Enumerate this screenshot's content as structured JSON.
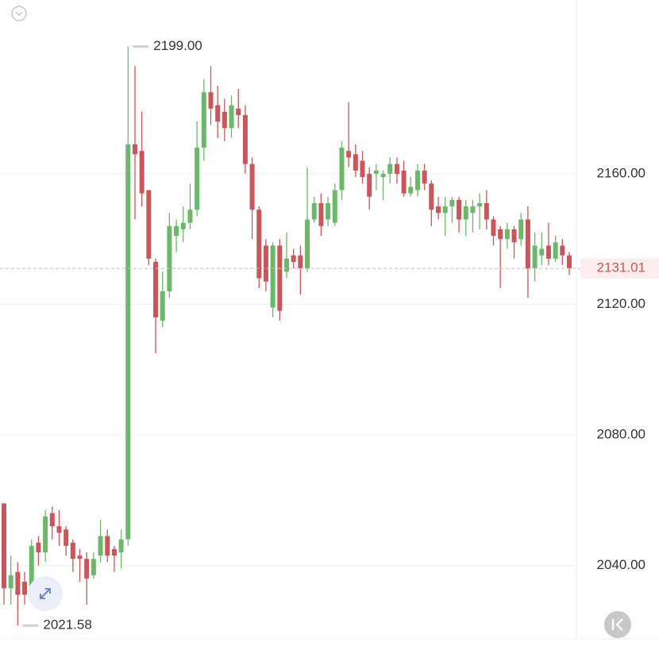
{
  "chart_data": {
    "type": "candlestick",
    "up_color": "#6cb86a",
    "down_color": "#c9565a",
    "open": [
      2059,
      2033,
      2038,
      2035,
      2032,
      2047,
      2044,
      2056,
      2052,
      2051,
      2047,
      2043,
      2042,
      2037,
      2043,
      2049,
      2045,
      2044,
      2048,
      2169,
      2167,
      2155,
      2133,
      2115,
      2124,
      2141,
      2143,
      2145,
      2149,
      2168,
      2185,
      2181,
      2179,
      2174,
      2180,
      2178,
      2163,
      2149,
      2138,
      2119,
      2138,
      2130,
      2135,
      2135,
      2131,
      2146,
      2151,
      2146,
      2145,
      2155,
      2167,
      2166,
      2164,
      2160,
      2160,
      2159,
      2160,
      2163,
      2161,
      2154,
      2155,
      2161,
      2157,
      2150,
      2148,
      2150,
      2152,
      2146,
      2148,
      2150,
      2151,
      2146,
      2143,
      2140,
      2143,
      2140,
      2146,
      2131,
      2135,
      2138,
      2134,
      2138,
      2135
    ],
    "high": [
      2059,
      2043,
      2041,
      2038,
      2048,
      2049,
      2057,
      2058,
      2057,
      2052,
      2048,
      2045,
      2044,
      2044,
      2054,
      2051,
      2046,
      2051,
      2199,
      2193,
      2179,
      2155,
      2134,
      2130,
      2148,
      2146,
      2150,
      2157,
      2176,
      2189,
      2193,
      2187,
      2183,
      2184,
      2186,
      2181,
      2165,
      2150,
      2140,
      2139,
      2140,
      2142,
      2137,
      2138,
      2162,
      2153,
      2154,
      2153,
      2157,
      2170,
      2182,
      2169,
      2167,
      2162,
      2163,
      2161,
      2165,
      2165,
      2164,
      2159,
      2163,
      2163,
      2158,
      2153,
      2153,
      2153,
      2153,
      2152,
      2152,
      2154,
      2155,
      2147,
      2144,
      2145,
      2144,
      2148,
      2150,
      2142,
      2142,
      2145,
      2141,
      2140,
      2136
    ],
    "low": [
      2028,
      2028,
      2021.58,
      2028,
      2029,
      2040,
      2041,
      2048,
      2046,
      2043,
      2038,
      2035,
      2028,
      2036,
      2041,
      2041,
      2038,
      2039,
      2046,
      2146,
      2150,
      2132,
      2105,
      2113,
      2122,
      2136,
      2139,
      2143,
      2147,
      2164,
      2175,
      2171,
      2170,
      2171,
      2174,
      2160,
      2140,
      2125,
      2124,
      2116,
      2115,
      2128,
      2131,
      2123,
      2130,
      2145,
      2141,
      2144,
      2144,
      2152,
      2162,
      2159,
      2157,
      2149,
      2155,
      2152,
      2157,
      2157,
      2153,
      2153,
      2153,
      2155,
      2144,
      2146,
      2141,
      2145,
      2142,
      2141,
      2142,
      2143,
      2143,
      2138,
      2125,
      2137,
      2134,
      2138,
      2122,
      2127,
      2132,
      2132,
      2133,
      2132,
      2129
    ],
    "close": [
      2033,
      2037,
      2031,
      2031,
      2046,
      2044,
      2055,
      2052,
      2050,
      2046,
      2042,
      2042,
      2036,
      2042,
      2049,
      2043,
      2043,
      2048,
      2169,
      2166,
      2154,
      2134,
      2116,
      2124,
      2144,
      2144,
      2145,
      2149,
      2168,
      2185,
      2180,
      2176,
      2174,
      2181,
      2178,
      2163,
      2149,
      2128,
      2127,
      2138,
      2118,
      2134,
      2133,
      2131,
      2146,
      2151,
      2144,
      2151,
      2155,
      2168,
      2165,
      2161,
      2159,
      2153,
      2161,
      2160,
      2163,
      2160,
      2154,
      2156,
      2161,
      2157,
      2149,
      2148,
      2150,
      2152,
      2146,
      2150,
      2150,
      2151,
      2146,
      2141,
      2140,
      2143,
      2139,
      2146,
      2131,
      2138,
      2137,
      2134,
      2139,
      2135,
      2131.01
    ],
    "ylim": [
      2017.5,
      2213.25
    ],
    "yticks": [
      {
        "value": 2040,
        "label": "2040.00"
      },
      {
        "value": 2080,
        "label": "2080.00"
      },
      {
        "value": 2120,
        "label": "2120.00"
      },
      {
        "value": 2160,
        "label": "2160.00"
      }
    ],
    "grid": true,
    "last_price": {
      "value": 2131.01,
      "label": "2131.01"
    },
    "max_label": {
      "value": 2199,
      "label": "2199.00"
    },
    "min_label": {
      "value": 2021.58,
      "label": "2021.58"
    }
  }
}
